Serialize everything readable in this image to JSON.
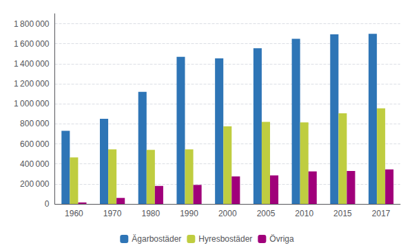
{
  "chart_data": {
    "type": "bar",
    "categories": [
      "1960",
      "1970",
      "1980",
      "1990",
      "2000",
      "2005",
      "2010",
      "2015",
      "2017"
    ],
    "series": [
      {
        "name": "Ägarbostäder",
        "color": "#2E75B6",
        "values": [
          730000,
          850000,
          1120000,
          1470000,
          1455000,
          1555000,
          1650000,
          1695000,
          1700000
        ]
      },
      {
        "name": "Hyresbostäder",
        "color": "#BFCD40",
        "values": [
          465000,
          545000,
          540000,
          545000,
          775000,
          820000,
          815000,
          905000,
          955000
        ]
      },
      {
        "name": "Övriga",
        "color": "#A0007A",
        "values": [
          15000,
          60000,
          180000,
          190000,
          275000,
          285000,
          325000,
          330000,
          345000
        ]
      }
    ],
    "ylim": [
      0,
      1900000
    ],
    "yticks": [
      0,
      {
        "value": 200000,
        "label": "200 000"
      },
      {
        "value": 400000,
        "label": "400 000"
      },
      {
        "value": 600000,
        "label": "600 000"
      },
      {
        "value": 800000,
        "label": "800 000"
      },
      {
        "value": 1000000,
        "label": "1 000 000"
      },
      {
        "value": 1200000,
        "label": "1 200 000"
      },
      {
        "value": 1400000,
        "label": "1 400 000"
      },
      {
        "value": 1600000,
        "label": "1 600 000"
      },
      {
        "value": 1800000,
        "label": "1 800 000"
      }
    ],
    "grid": true,
    "legend": "bottom"
  }
}
